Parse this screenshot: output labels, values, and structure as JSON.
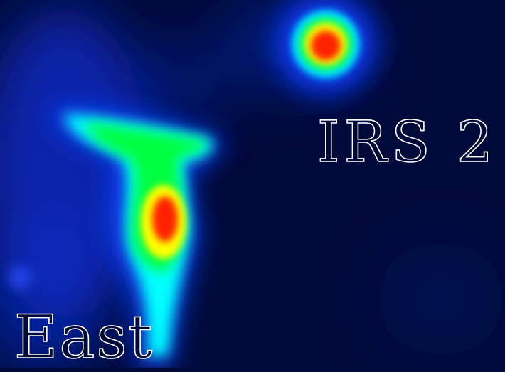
{
  "image": {
    "kind": "false-color infrared intensity map",
    "colormap": [
      "#000a3a",
      "#0a3cff",
      "#00ffff",
      "#00ff40",
      "#ffff00",
      "#ff2000"
    ],
    "background_color": "#000a3a"
  },
  "labels": {
    "irs2": "IRS 2",
    "east": "East"
  }
}
